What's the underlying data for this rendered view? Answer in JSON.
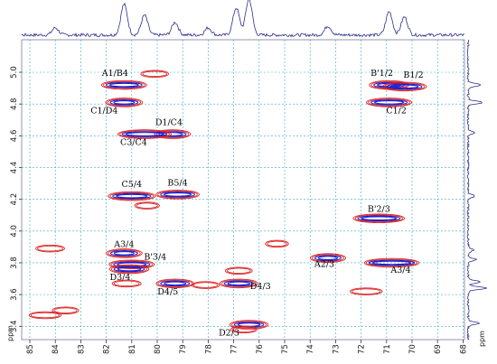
{
  "chart_data": {
    "type": "scatter",
    "title": "",
    "xlabel": "ppm",
    "ylabel": "ppm",
    "xlim": [
      85,
      68
    ],
    "ylim": [
      3.28,
      5.2
    ],
    "x_reversed": true,
    "y_reversed": true,
    "grid": true,
    "x_ticks": [
      "85",
      "84",
      "83",
      "82",
      "81",
      "80",
      "79",
      "78",
      "77",
      "76",
      "75",
      "74",
      "73",
      "72",
      "71",
      "70",
      "69",
      "68"
    ],
    "y_ticks": [
      "5.0",
      "4.8",
      "4.6",
      "4.4",
      "4.2",
      "4.0",
      "3.8",
      "3.6",
      "3.4"
    ],
    "colors": {
      "contour_outer": "#dd1f1f",
      "contour_inner": "#2020c8",
      "grid": "#3aa9c9",
      "trace": "#2c2c8c"
    },
    "peaks": [
      {
        "label": "A1/B4",
        "x": 81.3,
        "y": 4.92
      },
      {
        "label": "",
        "x": 80.1,
        "y": 4.99
      },
      {
        "label": "C1/D4",
        "x": 81.3,
        "y": 4.81
      },
      {
        "label": "B'1/2",
        "x": 70.9,
        "y": 4.92
      },
      {
        "label": "B1/2",
        "x": 70.3,
        "y": 4.91
      },
      {
        "label": "C1/2",
        "x": 70.9,
        "y": 4.81
      },
      {
        "label": "D1/C4",
        "x": 79.4,
        "y": 4.61
      },
      {
        "label": "C3/C4",
        "x": 80.5,
        "y": 4.61
      },
      {
        "label": "C5/4",
        "x": 81.0,
        "y": 4.22
      },
      {
        "label": "B5/4",
        "x": 79.2,
        "y": 4.23
      },
      {
        "label": "",
        "x": 80.4,
        "y": 4.16
      },
      {
        "label": "B'2/3",
        "x": 71.3,
        "y": 4.08
      },
      {
        "label": "",
        "x": 84.2,
        "y": 3.89
      },
      {
        "label": "A3/4",
        "x": 81.3,
        "y": 3.86
      },
      {
        "label": "B'3/4",
        "x": 81.0,
        "y": 3.79
      },
      {
        "label": "D3/4",
        "x": 81.1,
        "y": 3.76
      },
      {
        "label": "",
        "x": 81.2,
        "y": 3.67
      },
      {
        "label": "D4/5",
        "x": 79.3,
        "y": 3.67
      },
      {
        "label": "",
        "x": 78.1,
        "y": 3.66
      },
      {
        "label": "",
        "x": 76.8,
        "y": 3.75
      },
      {
        "label": "D4/3",
        "x": 76.8,
        "y": 3.67
      },
      {
        "label": "A2/3",
        "x": 73.3,
        "y": 3.83
      },
      {
        "label": "A3/4",
        "x": 70.8,
        "y": 3.8
      },
      {
        "label": "",
        "x": 71.8,
        "y": 3.62
      },
      {
        "label": "",
        "x": 75.3,
        "y": 3.92
      },
      {
        "label": "",
        "x": 83.6,
        "y": 3.5
      },
      {
        "label": "",
        "x": 84.4,
        "y": 3.47
      },
      {
        "label": "D2/3",
        "x": 76.4,
        "y": 3.41
      },
      {
        "label": "",
        "x": 76.6,
        "y": 3.38
      }
    ]
  }
}
